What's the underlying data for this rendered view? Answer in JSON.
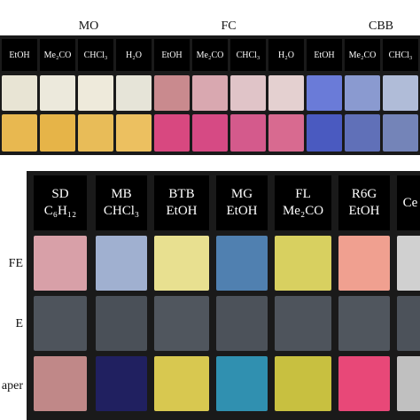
{
  "top": {
    "groups": [
      "MO",
      "FC",
      "CBB"
    ],
    "columns": [
      "EtOH",
      "Me₂CO",
      "CHCl₃",
      "H₂O",
      "EtOH",
      "Me₂CO",
      "CHCl₃",
      "H₂O",
      "EtOH",
      "Me₂CO",
      "CHCl₃"
    ]
  },
  "bottom": {
    "columns": [
      {
        "line1": "SD",
        "line2": "C₆H₁₂"
      },
      {
        "line1": "MB",
        "line2": "CHCl₃"
      },
      {
        "line1": "BTB",
        "line2": "EtOH"
      },
      {
        "line1": "MG",
        "line2": "EtOH"
      },
      {
        "line1": "FL",
        "line2": "Me₂CO"
      },
      {
        "line1": "R6G",
        "line2": "EtOH"
      },
      {
        "line1": "Ce"
      }
    ],
    "rows": [
      "FE",
      "E",
      "aper"
    ]
  }
}
